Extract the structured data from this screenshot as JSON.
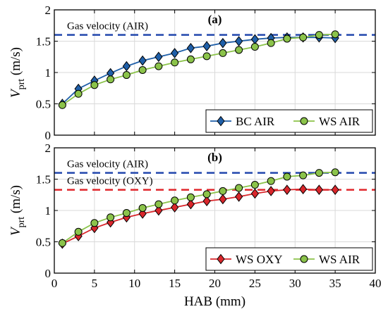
{
  "chart_data": [
    {
      "panel": "(a)",
      "type": "line",
      "xlabel": "",
      "ylabel": "V_prt (m/s)",
      "ylabel_main": "V",
      "ylabel_sub": "prt",
      "ylabel_unit": "(m/s)",
      "xlim": [
        0,
        40
      ],
      "ylim": [
        0,
        2
      ],
      "xticks": [
        "0",
        "5",
        "10",
        "15",
        "20",
        "25",
        "30",
        "35",
        "40"
      ],
      "yticks": [
        "0",
        "0.5",
        "1",
        "1.5",
        "2"
      ],
      "grid": true,
      "legend": "bottom-right",
      "hlines": [
        {
          "label": "Gas velocity (AIR)",
          "y": 1.6,
          "color": "#2b4fb0"
        }
      ],
      "series": [
        {
          "name": "BC AIR",
          "marker": "diamond",
          "color": "#1f5fa8",
          "x": [
            1,
            3,
            5,
            7,
            9,
            11,
            13,
            15,
            17,
            19,
            21,
            23,
            25,
            27,
            29,
            31,
            33,
            35
          ],
          "y": [
            0.5,
            0.74,
            0.87,
            0.99,
            1.1,
            1.19,
            1.25,
            1.31,
            1.39,
            1.42,
            1.47,
            1.5,
            1.53,
            1.55,
            1.56,
            1.56,
            1.56,
            1.55
          ]
        },
        {
          "name": "WS AIR",
          "marker": "circle",
          "color": "#8bc34a",
          "x": [
            1,
            3,
            5,
            7,
            9,
            11,
            13,
            15,
            17,
            19,
            21,
            23,
            25,
            27,
            29,
            31,
            33,
            35
          ],
          "y": [
            0.48,
            0.66,
            0.8,
            0.89,
            0.96,
            1.04,
            1.1,
            1.16,
            1.21,
            1.26,
            1.31,
            1.36,
            1.41,
            1.47,
            1.54,
            1.56,
            1.6,
            1.61
          ]
        }
      ]
    },
    {
      "panel": "(b)",
      "type": "line",
      "xlabel": "HAB (mm)",
      "ylabel": "V_prt (m/s)",
      "ylabel_main": "V",
      "ylabel_sub": "prt",
      "ylabel_unit": "(m/s)",
      "xlim": [
        0,
        40
      ],
      "ylim": [
        0,
        2
      ],
      "xticks": [
        "0",
        "5",
        "10",
        "15",
        "20",
        "25",
        "30",
        "35",
        "40"
      ],
      "yticks": [
        "0",
        "0.5",
        "1",
        "1.5",
        "2"
      ],
      "grid": true,
      "legend": "bottom-right",
      "hlines": [
        {
          "label": "Gas velocity (AIR)",
          "y": 1.6,
          "color": "#2b4fb0"
        },
        {
          "label": "Gas velocity (OXY)",
          "y": 1.33,
          "color": "#e0262b"
        }
      ],
      "series": [
        {
          "name": "WS OXY",
          "marker": "diamond",
          "color": "#d9262b",
          "x": [
            1,
            3,
            5,
            7,
            9,
            11,
            13,
            15,
            17,
            19,
            21,
            23,
            25,
            27,
            29,
            31,
            33,
            35
          ],
          "y": [
            0.47,
            0.59,
            0.72,
            0.81,
            0.89,
            0.95,
            1.0,
            1.05,
            1.1,
            1.15,
            1.18,
            1.22,
            1.27,
            1.31,
            1.33,
            1.34,
            1.33,
            1.33
          ]
        },
        {
          "name": "WS AIR",
          "marker": "circle",
          "color": "#8bc34a",
          "x": [
            1,
            3,
            5,
            7,
            9,
            11,
            13,
            15,
            17,
            19,
            21,
            23,
            25,
            27,
            29,
            31,
            33,
            35
          ],
          "y": [
            0.48,
            0.66,
            0.8,
            0.89,
            0.96,
            1.04,
            1.1,
            1.16,
            1.21,
            1.26,
            1.31,
            1.36,
            1.41,
            1.47,
            1.54,
            1.56,
            1.6,
            1.61
          ]
        }
      ]
    }
  ]
}
